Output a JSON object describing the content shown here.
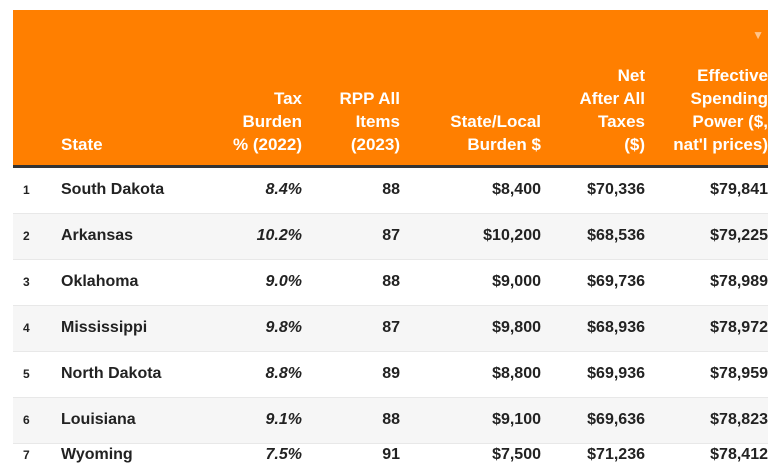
{
  "header": {
    "accent": "#FF7F00",
    "columns": [
      "",
      "State",
      "Tax Burden % (2022)",
      "RPP All Items (2023)",
      "State/Local Burden $",
      "Net After All Taxes ($)",
      "Effective Spending Power ($, nat'l prices)"
    ],
    "sort_icon": "triangle-down-icon"
  },
  "rows": [
    {
      "rank": "1",
      "state": "South Dakota",
      "tax": "8.4%",
      "rpp": "88",
      "burden": "$8,400",
      "net": "$70,336",
      "power": "$79,841"
    },
    {
      "rank": "2",
      "state": "Arkansas",
      "tax": "10.2%",
      "rpp": "87",
      "burden": "$10,200",
      "net": "$68,536",
      "power": "$79,225"
    },
    {
      "rank": "3",
      "state": "Oklahoma",
      "tax": "9.0%",
      "rpp": "88",
      "burden": "$9,000",
      "net": "$69,736",
      "power": "$78,989"
    },
    {
      "rank": "4",
      "state": "Mississippi",
      "tax": "9.8%",
      "rpp": "87",
      "burden": "$9,800",
      "net": "$68,936",
      "power": "$78,972"
    },
    {
      "rank": "5",
      "state": "North Dakota",
      "tax": "8.8%",
      "rpp": "89",
      "burden": "$8,800",
      "net": "$69,936",
      "power": "$78,959"
    },
    {
      "rank": "6",
      "state": "Louisiana",
      "tax": "9.1%",
      "rpp": "88",
      "burden": "$9,100",
      "net": "$69,636",
      "power": "$78,823"
    },
    {
      "rank": "7",
      "state": "Wyoming",
      "tax": "7.5%",
      "rpp": "91",
      "burden": "$7,500",
      "net": "$71,236",
      "power": "$78,412"
    }
  ]
}
